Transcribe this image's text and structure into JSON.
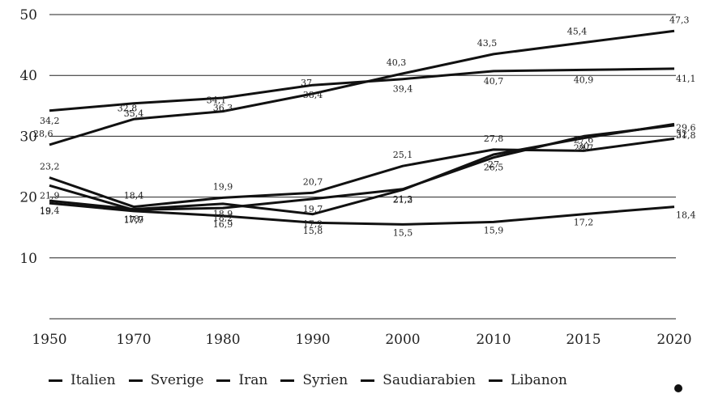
{
  "chart_data": {
    "type": "line",
    "title": "",
    "xlabel": "",
    "ylabel": "",
    "x": [
      "1950",
      "1970",
      "1980",
      "1990",
      "2000",
      "2010",
      "2015",
      "2020"
    ],
    "yticks": [
      "10",
      "20",
      "30",
      "40",
      "50"
    ],
    "ylim": [
      0,
      50
    ],
    "grid": true,
    "legend_position": "bottom",
    "series": [
      {
        "name": "Italien",
        "values": [
          28.6,
          32.8,
          34.1,
          37,
          40.3,
          43.5,
          45.4,
          47.3
        ],
        "labels": [
          "28,6",
          "32,8",
          "34,1",
          "37",
          "40,3",
          "43,5",
          "45,4",
          "47,3"
        ]
      },
      {
        "name": "Sverige",
        "values": [
          34.2,
          35.4,
          36.3,
          38.4,
          39.4,
          40.7,
          40.9,
          41.1
        ],
        "labels": [
          "34,2",
          "35,4",
          "36,3",
          "38,4",
          "39,4",
          "40,7",
          "40,9",
          "41,1"
        ]
      },
      {
        "name": "Iran",
        "values": [
          21.9,
          17.9,
          18.2,
          19.7,
          21.3,
          26.5,
          30,
          31.8
        ],
        "labels": [
          "21,9",
          "17,9",
          "18,2",
          "19,7",
          "21,3",
          "26,5",
          "30",
          "31,8"
        ]
      },
      {
        "name": "Syrien",
        "values": [
          19.4,
          18,
          18.9,
          17.2,
          21.2,
          27,
          29.7,
          32
        ],
        "labels": [
          "19,4",
          "18",
          "18,9",
          "17,2",
          "21,2",
          "27",
          "29,7",
          "32"
        ]
      },
      {
        "name": "Saudiarabien",
        "values": [
          23.2,
          18.4,
          19.9,
          20.7,
          25.1,
          27.8,
          27.6,
          29.6
        ],
        "labels": [
          "23,2",
          "18,4",
          "19,9",
          "20,7",
          "25,1",
          "27,8",
          "27,6",
          "29,6"
        ]
      },
      {
        "name": "Libanon",
        "values": [
          19,
          17.7,
          16.9,
          15.8,
          15.5,
          15.9,
          17.2,
          18.4
        ],
        "labels": [
          "19",
          "17,7",
          "16,9",
          "15,8",
          "15,5",
          "15,9",
          "17,2",
          "18,4"
        ]
      }
    ]
  }
}
